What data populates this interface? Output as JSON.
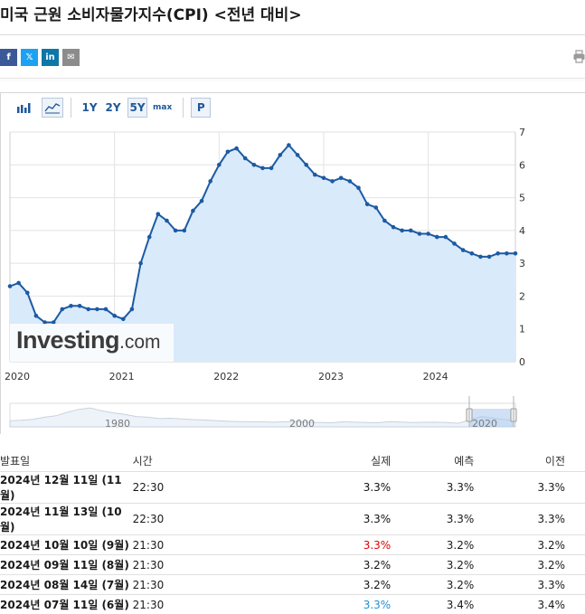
{
  "page": {
    "title": "미국 근원 소비자물가지수(CPI) <전년 대비>"
  },
  "share": [
    "f",
    "𝕏",
    "in",
    "✉"
  ],
  "toolbar": {
    "buttons": [
      "1Y",
      "2Y",
      "5Y",
      "max",
      "P"
    ],
    "selected": "5Y"
  },
  "chart_data": {
    "type": "area",
    "x": [
      "2020-01",
      "2020-02",
      "2020-03",
      "2020-04",
      "2020-05",
      "2020-06",
      "2020-07",
      "2020-08",
      "2020-09",
      "2020-10",
      "2020-11",
      "2020-12",
      "2021-01",
      "2021-02",
      "2021-03",
      "2021-04",
      "2021-05",
      "2021-06",
      "2021-07",
      "2021-08",
      "2021-09",
      "2021-10",
      "2021-11",
      "2021-12",
      "2022-01",
      "2022-02",
      "2022-03",
      "2022-04",
      "2022-05",
      "2022-06",
      "2022-07",
      "2022-08",
      "2022-09",
      "2022-10",
      "2022-11",
      "2022-12",
      "2023-01",
      "2023-02",
      "2023-03",
      "2023-04",
      "2023-05",
      "2023-06",
      "2023-07",
      "2023-08",
      "2023-09",
      "2023-10",
      "2023-11",
      "2023-12",
      "2024-01",
      "2024-02",
      "2024-03",
      "2024-04",
      "2024-05",
      "2024-06",
      "2024-07",
      "2024-08",
      "2024-09",
      "2024-10",
      "2024-11"
    ],
    "values": [
      2.3,
      2.4,
      2.1,
      1.4,
      1.2,
      1.2,
      1.6,
      1.7,
      1.7,
      1.6,
      1.6,
      1.6,
      1.4,
      1.3,
      1.6,
      3.0,
      3.8,
      4.5,
      4.3,
      4.0,
      4.0,
      4.6,
      4.9,
      5.5,
      6.0,
      6.4,
      6.5,
      6.2,
      6.0,
      5.9,
      5.9,
      6.3,
      6.6,
      6.3,
      6.0,
      5.7,
      5.6,
      5.5,
      5.6,
      5.5,
      5.3,
      4.8,
      4.7,
      4.3,
      4.1,
      4.0,
      4.0,
      3.9,
      3.9,
      3.8,
      3.8,
      3.6,
      3.4,
      3.3,
      3.2,
      3.2,
      3.3,
      3.3,
      3.3
    ],
    "ylim": [
      0,
      7
    ],
    "yticks": [
      0,
      1,
      2,
      3,
      4,
      5,
      6,
      7
    ],
    "xticks": [
      "2020",
      "2021",
      "2022",
      "2023",
      "2024"
    ],
    "navigator_labels": [
      "1980",
      "2000",
      "2020"
    ],
    "colors": {
      "line": "#1c5aa3",
      "fill": "#d9eafb",
      "grid": "#e2e2e2"
    }
  },
  "logo": {
    "main": "Investing",
    "suffix": ".com"
  },
  "table": {
    "headers": {
      "date": "발표일",
      "time": "시간",
      "actual": "실제",
      "forecast": "예측",
      "previous": "이전"
    },
    "rows": [
      {
        "date": "2024년 12월 11일 (11월)",
        "time": "22:30",
        "actual": "3.3%",
        "actual_color": "black",
        "forecast": "3.3%",
        "previous": "3.3%"
      },
      {
        "date": "2024년 11월 13일 (10월)",
        "time": "22:30",
        "actual": "3.3%",
        "actual_color": "black",
        "forecast": "3.3%",
        "previous": "3.3%"
      },
      {
        "date": "2024년 10월 10일 (9월)",
        "time": "21:30",
        "actual": "3.3%",
        "actual_color": "red",
        "forecast": "3.2%",
        "previous": "3.2%"
      },
      {
        "date": "2024년 09월 11일 (8월)",
        "time": "21:30",
        "actual": "3.2%",
        "actual_color": "black",
        "forecast": "3.2%",
        "previous": "3.2%"
      },
      {
        "date": "2024년 08월 14일 (7월)",
        "time": "21:30",
        "actual": "3.2%",
        "actual_color": "black",
        "forecast": "3.2%",
        "previous": "3.3%"
      },
      {
        "date": "2024년 07월 11일 (6월)",
        "time": "21:30",
        "actual": "3.3%",
        "actual_color": "blue",
        "forecast": "3.4%",
        "previous": "3.4%"
      }
    ]
  }
}
